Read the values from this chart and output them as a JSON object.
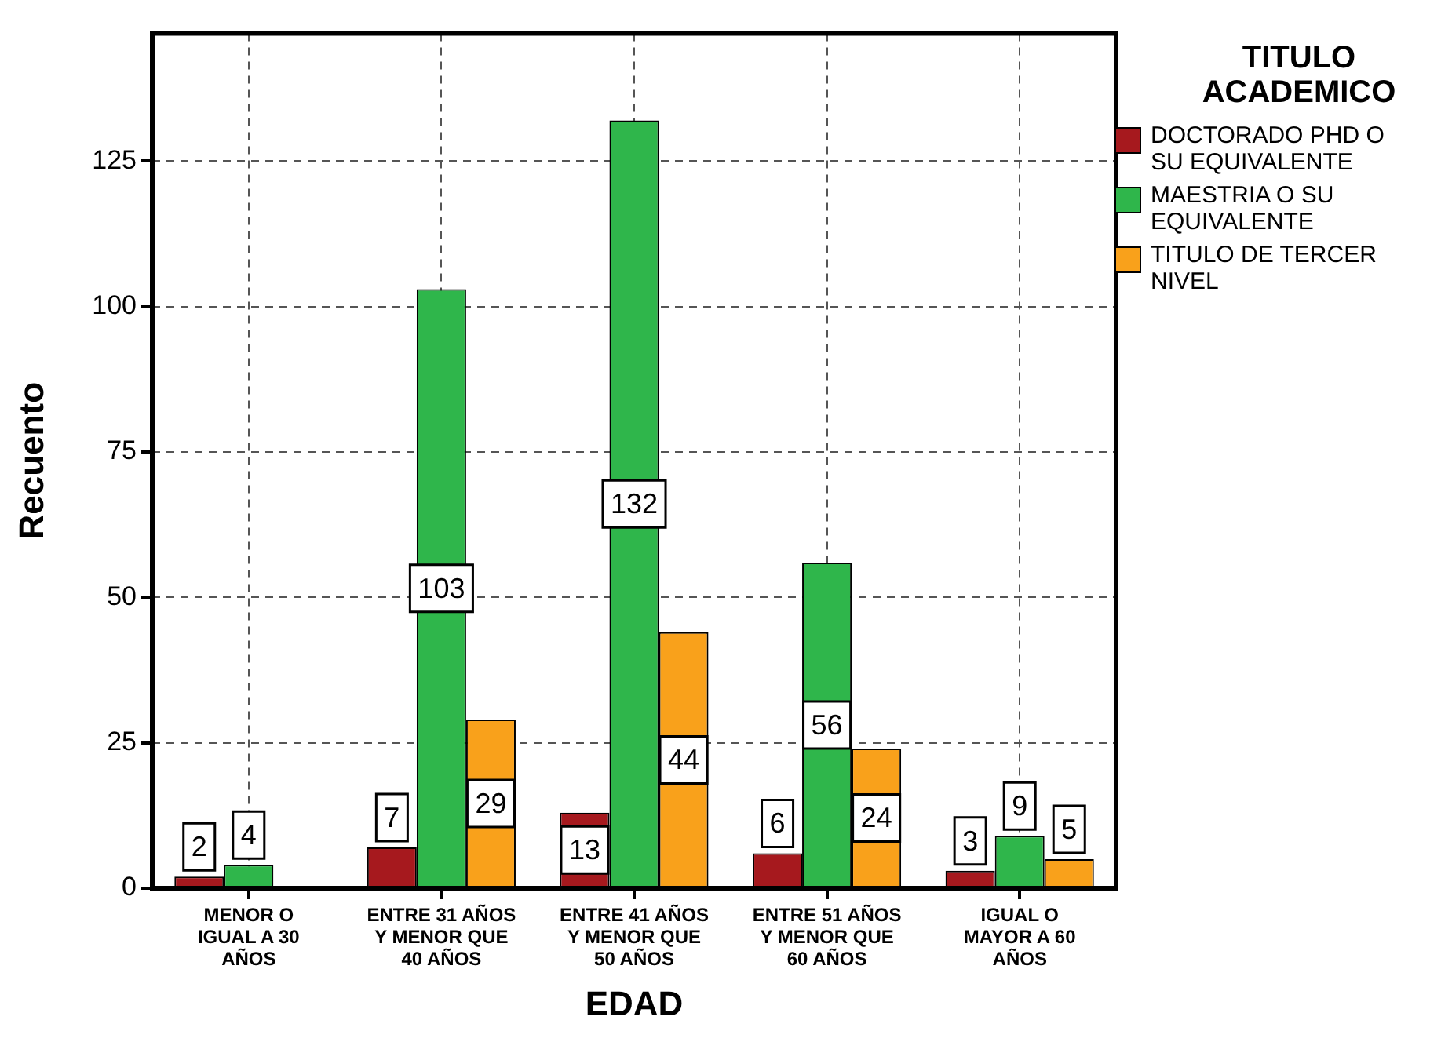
{
  "chart_data": {
    "type": "bar",
    "xlabel": "EDAD",
    "ylabel": "Recuento",
    "legend_title": "TITULO ACADEMICO",
    "categories": [
      "MENOR O IGUAL A 30 AÑOS",
      "ENTRE 31 AÑOS Y MENOR QUE 40 AÑOS",
      "ENTRE 41 AÑOS Y MENOR QUE 50 AÑOS",
      "ENTRE 51 AÑOS Y MENOR QUE 60 AÑOS",
      "IGUAL O MAYOR A 60 AÑOS"
    ],
    "series": [
      {
        "name": "DOCTORADO PHD O SU EQUIVALENTE",
        "color": "#a6191e",
        "values": [
          2,
          7,
          13,
          6,
          3
        ]
      },
      {
        "name": "MAESTRIA O SU EQUIVALENTE",
        "color": "#2fb64b",
        "values": [
          4,
          103,
          132,
          56,
          9
        ]
      },
      {
        "name": "TITULO DE TERCER NIVEL",
        "color": "#f9a11b",
        "values": [
          null,
          29,
          44,
          24,
          5
        ]
      }
    ],
    "ylim": [
      0,
      147
    ],
    "yticks": [
      0,
      25,
      50,
      75,
      100,
      125
    ],
    "grid": true,
    "legend": "top right",
    "data_labels": true
  }
}
